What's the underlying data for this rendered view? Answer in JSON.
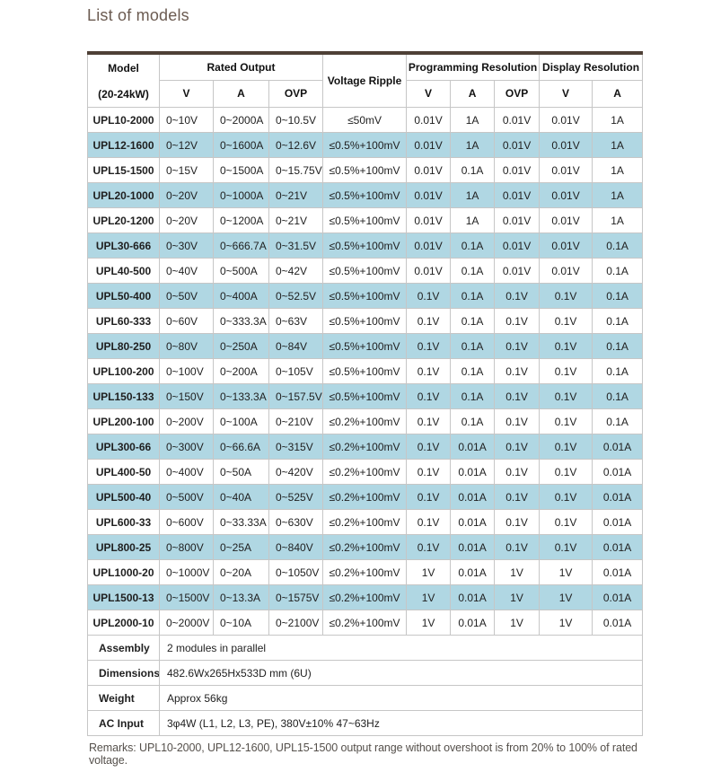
{
  "page": {
    "title": "List of models",
    "remarks": "Remarks: UPL10-2000, UPL12-1600, UPL15-1500 output range without overshoot is from 20% to 100% of rated voltage."
  },
  "table": {
    "header": {
      "model": "Model",
      "model_sub": "(20-24kW)",
      "rated_output": "Rated Output",
      "voltage_ripple": "Voltage Ripple",
      "programming_resolution": "Programming Resolution",
      "display_resolution": "Display Resolution",
      "sub_v": "V",
      "sub_a": "A",
      "sub_ovp": "OVP"
    },
    "columns": [
      "Model",
      "Rated Output V",
      "Rated Output A",
      "Rated Output OVP",
      "Voltage Ripple",
      "Programming Resolution V",
      "Programming Resolution A",
      "Programming Resolution OVP",
      "Display Resolution V",
      "Display Resolution A"
    ],
    "rows": [
      [
        "UPL10-2000",
        "0~10V",
        "0~2000A",
        "0~10.5V",
        "≤50mV",
        "0.01V",
        "1A",
        "0.01V",
        "0.01V",
        "1A"
      ],
      [
        "UPL12-1600",
        "0~12V",
        "0~1600A",
        "0~12.6V",
        "≤0.5%+100mV",
        "0.01V",
        "1A",
        "0.01V",
        "0.01V",
        "1A"
      ],
      [
        "UPL15-1500",
        "0~15V",
        "0~1500A",
        "0~15.75V",
        "≤0.5%+100mV",
        "0.01V",
        "0.1A",
        "0.01V",
        "0.01V",
        "1A"
      ],
      [
        "UPL20-1000",
        "0~20V",
        "0~1000A",
        "0~21V",
        "≤0.5%+100mV",
        "0.01V",
        "1A",
        "0.01V",
        "0.01V",
        "1A"
      ],
      [
        "UPL20-1200",
        "0~20V",
        "0~1200A",
        "0~21V",
        "≤0.5%+100mV",
        "0.01V",
        "1A",
        "0.01V",
        "0.01V",
        "1A"
      ],
      [
        "UPL30-666",
        "0~30V",
        "0~666.7A",
        "0~31.5V",
        "≤0.5%+100mV",
        "0.01V",
        "0.1A",
        "0.01V",
        "0.01V",
        "0.1A"
      ],
      [
        "UPL40-500",
        "0~40V",
        "0~500A",
        "0~42V",
        "≤0.5%+100mV",
        "0.01V",
        "0.1A",
        "0.01V",
        "0.01V",
        "0.1A"
      ],
      [
        "UPL50-400",
        "0~50V",
        "0~400A",
        "0~52.5V",
        "≤0.5%+100mV",
        "0.1V",
        "0.1A",
        "0.1V",
        "0.1V",
        "0.1A"
      ],
      [
        "UPL60-333",
        "0~60V",
        "0~333.3A",
        "0~63V",
        "≤0.5%+100mV",
        "0.1V",
        "0.1A",
        "0.1V",
        "0.1V",
        "0.1A"
      ],
      [
        "UPL80-250",
        "0~80V",
        "0~250A",
        "0~84V",
        "≤0.5%+100mV",
        "0.1V",
        "0.1A",
        "0.1V",
        "0.1V",
        "0.1A"
      ],
      [
        "UPL100-200",
        "0~100V",
        "0~200A",
        "0~105V",
        "≤0.5%+100mV",
        "0.1V",
        "0.1A",
        "0.1V",
        "0.1V",
        "0.1A"
      ],
      [
        "UPL150-133",
        "0~150V",
        "0~133.3A",
        "0~157.5V",
        "≤0.5%+100mV",
        "0.1V",
        "0.1A",
        "0.1V",
        "0.1V",
        "0.1A"
      ],
      [
        "UPL200-100",
        "0~200V",
        "0~100A",
        "0~210V",
        "≤0.2%+100mV",
        "0.1V",
        "0.1A",
        "0.1V",
        "0.1V",
        "0.1A"
      ],
      [
        "UPL300-66",
        "0~300V",
        "0~66.6A",
        "0~315V",
        "≤0.2%+100mV",
        "0.1V",
        "0.01A",
        "0.1V",
        "0.1V",
        "0.01A"
      ],
      [
        "UPL400-50",
        "0~400V",
        "0~50A",
        "0~420V",
        "≤0.2%+100mV",
        "0.1V",
        "0.01A",
        "0.1V",
        "0.1V",
        "0.01A"
      ],
      [
        "UPL500-40",
        "0~500V",
        "0~40A",
        "0~525V",
        "≤0.2%+100mV",
        "0.1V",
        "0.01A",
        "0.1V",
        "0.1V",
        "0.01A"
      ],
      [
        "UPL600-33",
        "0~600V",
        "0~33.33A",
        "0~630V",
        "≤0.2%+100mV",
        "0.1V",
        "0.01A",
        "0.1V",
        "0.1V",
        "0.01A"
      ],
      [
        "UPL800-25",
        "0~800V",
        "0~25A",
        "0~840V",
        "≤0.2%+100mV",
        "0.1V",
        "0.01A",
        "0.1V",
        "0.1V",
        "0.01A"
      ],
      [
        "UPL1000-20",
        "0~1000V",
        "0~20A",
        "0~1050V",
        "≤0.2%+100mV",
        "1V",
        "0.01A",
        "1V",
        "1V",
        "0.01A"
      ],
      [
        "UPL1500-13",
        "0~1500V",
        "0~13.3A",
        "0~1575V",
        "≤0.2%+100mV",
        "1V",
        "0.01A",
        "1V",
        "1V",
        "0.01A"
      ],
      [
        "UPL2000-10",
        "0~2000V",
        "0~10A",
        "0~2100V",
        "≤0.2%+100mV",
        "1V",
        "0.01A",
        "1V",
        "1V",
        "0.01A"
      ]
    ],
    "footer_rows": [
      {
        "label": "Assembly",
        "value": "2 modules in parallel"
      },
      {
        "label": "Dimensions",
        "value": "482.6Wx265Hx533D mm (6U)"
      },
      {
        "label": "Weight",
        "value": "Approx 56kg"
      },
      {
        "label": "AC Input",
        "value": "3φ4W (L1, L2, L3, PE), 380V±10% 47~63Hz"
      }
    ],
    "colors": {
      "alt_row_background": "#b0d7e3",
      "top_border": "#4e4036",
      "cell_border": "#c6c6c6",
      "title_text": "#6b5b51",
      "remarks_text": "#55504b"
    }
  }
}
